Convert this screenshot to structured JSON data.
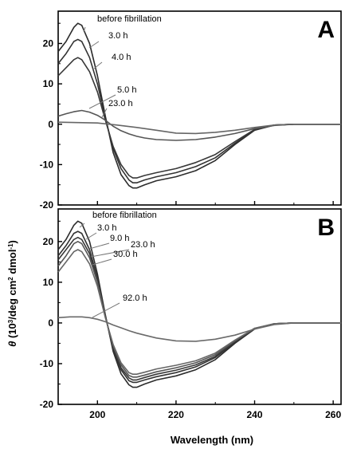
{
  "chart_data": {
    "type": "line",
    "xlabel": "Wavelength (nm)",
    "ylabel_prefix": "θ",
    "ylabel_mid": " (10",
    "ylabel_sup1": "3",
    "ylabel_mid2": "/deg cm",
    "ylabel_sup2": "2",
    "ylabel_mid3": " dmol",
    "ylabel_sup3": "-1",
    "ylabel_end": ")",
    "xlim": [
      190,
      262
    ],
    "x_ticks": [
      200,
      220,
      240,
      260
    ],
    "ylim": [
      -20,
      28
    ],
    "y_ticks": [
      20,
      10,
      0,
      -10,
      -20
    ],
    "grid": false,
    "panels": [
      {
        "panel_label": "A",
        "series": [
          {
            "name": "before fibrillation",
            "x": [
              190,
              192,
              194,
              195,
              196,
              198,
              200,
              202,
              204,
              206,
              208,
              209,
              210,
              212,
              215,
              220,
              225,
              230,
              235,
              240,
              245,
              250,
              255,
              262
            ],
            "y": [
              18,
              20.5,
              24,
              25,
              24.5,
              20,
              12,
              2,
              -7,
              -12.5,
              -15.2,
              -15.8,
              -15.8,
              -15,
              -14,
              -13,
              -11.5,
              -9,
              -5,
              -1.5,
              -0.2,
              0,
              0,
              0
            ]
          },
          {
            "name": "3.0 h",
            "x": [
              190,
              192,
              194,
              195,
              196,
              198,
              200,
              202,
              204,
              206,
              208,
              209,
              210,
              212,
              215,
              220,
              225,
              230,
              235,
              240,
              245,
              250,
              255,
              262
            ],
            "y": [
              15,
              17.5,
              20.5,
              21,
              20.5,
              16.5,
              10,
              1.5,
              -6,
              -11,
              -13.8,
              -14.5,
              -14.5,
              -13.8,
              -13,
              -12,
              -10.5,
              -8.3,
              -4.7,
              -1.4,
              -0.2,
              0,
              0,
              0
            ]
          },
          {
            "name": "4.0 h",
            "x": [
              190,
              192,
              194,
              195,
              196,
              198,
              200,
              202,
              204,
              206,
              208,
              209,
              210,
              212,
              215,
              220,
              225,
              230,
              235,
              240,
              245,
              250,
              255,
              262
            ],
            "y": [
              12,
              14,
              16,
              16.5,
              16,
              13,
              8,
              1,
              -5.5,
              -10,
              -12.7,
              -13.3,
              -13.3,
              -12.7,
              -12,
              -11,
              -9.5,
              -7.5,
              -4.3,
              -1.3,
              -0.2,
              0,
              0,
              0
            ]
          },
          {
            "name": "5.0 h",
            "x": [
              190,
              192,
              194,
              196,
              198,
              200,
              202,
              204,
              206,
              208,
              210,
              212,
              215,
              220,
              225,
              230,
              235,
              240,
              245,
              250,
              255,
              262
            ],
            "y": [
              2,
              2.6,
              3.1,
              3.4,
              3,
              2.2,
              1,
              -0.5,
              -1.6,
              -2.4,
              -3,
              -3.4,
              -3.8,
              -4,
              -3.8,
              -3.2,
              -2.3,
              -1.1,
              -0.3,
              0,
              0,
              0
            ]
          },
          {
            "name": "23.0 h",
            "x": [
              190,
              195,
              200,
              205,
              210,
              215,
              220,
              225,
              230,
              235,
              240,
              245,
              250,
              255,
              262
            ],
            "y": [
              0.5,
              0.4,
              0.3,
              -0.2,
              -0.8,
              -1.5,
              -2.2,
              -2.3,
              -2,
              -1.5,
              -0.8,
              -0.2,
              0,
              0,
              0
            ]
          }
        ],
        "annotations": [
          "before fibrillation",
          "3.0 h",
          "4.0 h",
          "5.0 h",
          "23.0 h"
        ]
      },
      {
        "panel_label": "B",
        "series": [
          {
            "name": "before fibrillation",
            "x": [
              190,
              192,
              194,
              195,
              196,
              198,
              200,
              202,
              204,
              206,
              208,
              209,
              210,
              212,
              215,
              220,
              225,
              230,
              235,
              240,
              245,
              250,
              255,
              262
            ],
            "y": [
              18,
              20.5,
              24,
              25,
              24.5,
              20,
              12,
              2,
              -7,
              -12.5,
              -15.2,
              -15.8,
              -15.8,
              -15,
              -14,
              -13,
              -11.5,
              -9,
              -5,
              -1.5,
              -0.2,
              0,
              0,
              0
            ]
          },
          {
            "name": "3.0 h",
            "x": [
              190,
              192,
              194,
              195,
              196,
              198,
              200,
              202,
              204,
              206,
              208,
              209,
              210,
              212,
              215,
              220,
              225,
              230,
              235,
              240,
              245,
              250,
              255,
              262
            ],
            "y": [
              16.5,
              19,
              22,
              22.5,
              22,
              18,
              11,
              1.8,
              -6.5,
              -11.5,
              -14.2,
              -14.6,
              -14.6,
              -14,
              -13.2,
              -12.2,
              -10.8,
              -8.5,
              -4.8,
              -1.4,
              -0.2,
              0,
              0,
              0
            ]
          },
          {
            "name": "9.0 h",
            "x": [
              190,
              192,
              194,
              195,
              196,
              198,
              200,
              202,
              204,
              206,
              208,
              209,
              210,
              212,
              215,
              220,
              225,
              230,
              235,
              240,
              245,
              250,
              255,
              262
            ],
            "y": [
              15.5,
              18,
              20.5,
              21,
              20.5,
              17,
              10.5,
              1.6,
              -6,
              -11,
              -13.5,
              -14,
              -14,
              -13.4,
              -12.6,
              -11.6,
              -10.3,
              -8.2,
              -4.6,
              -1.4,
              -0.2,
              0,
              0,
              0
            ]
          },
          {
            "name": "23.0 h",
            "x": [
              190,
              192,
              194,
              195,
              196,
              198,
              200,
              202,
              204,
              206,
              208,
              209,
              210,
              212,
              215,
              220,
              225,
              230,
              235,
              240,
              245,
              250,
              255,
              262
            ],
            "y": [
              14,
              16.5,
              19.5,
              20,
              19.5,
              16,
              10,
              1.5,
              -5.7,
              -10.3,
              -12.9,
              -13.3,
              -13.3,
              -12.8,
              -12,
              -11,
              -9.8,
              -7.8,
              -4.4,
              -1.3,
              -0.2,
              0,
              0,
              0
            ]
          },
          {
            "name": "30.0 h",
            "x": [
              190,
              192,
              194,
              195,
              196,
              198,
              200,
              202,
              204,
              206,
              208,
              209,
              210,
              212,
              215,
              220,
              225,
              230,
              235,
              240,
              245,
              250,
              255,
              262
            ],
            "y": [
              12.5,
              15,
              17.5,
              18,
              17.5,
              14.5,
              9,
              1.3,
              -5.3,
              -9.8,
              -12.2,
              -12.6,
              -12.6,
              -12.1,
              -11.3,
              -10.4,
              -9.3,
              -7.4,
              -4.2,
              -1.3,
              -0.2,
              0,
              0,
              0
            ]
          },
          {
            "name": "92.0 h",
            "x": [
              190,
              193,
              196,
              198,
              200,
              202,
              204,
              206,
              208,
              210,
              212,
              215,
              220,
              225,
              230,
              235,
              240,
              245,
              250,
              255,
              262
            ],
            "y": [
              1.3,
              1.5,
              1.5,
              1.3,
              0.9,
              0.3,
              -0.5,
              -1.2,
              -1.9,
              -2.5,
              -3,
              -3.7,
              -4.4,
              -4.5,
              -4,
              -3,
              -1.5,
              -0.4,
              0,
              0,
              0
            ]
          }
        ],
        "annotations": [
          "before fibrillation",
          "3.0 h",
          "9.0 h",
          "23.0 h",
          "30.0 h",
          "92.0 h"
        ]
      }
    ]
  }
}
